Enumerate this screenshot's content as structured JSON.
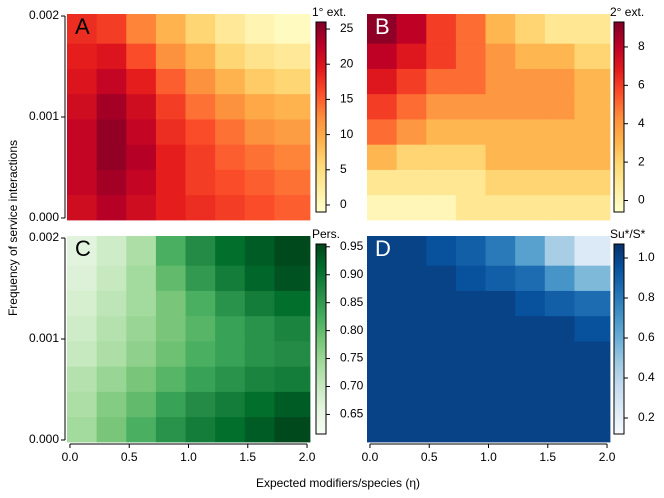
{
  "figure": {
    "xlabel": "Expected modifiers/species (η)",
    "ylabel": "Frequency of service interactions"
  },
  "chart_data": [
    {
      "type": "heatmap",
      "label": "A",
      "label_color": "#000000",
      "colorbar_title": "1° ext.",
      "colors": [
        "#ffffcc",
        "#ffeda0",
        "#fed976",
        "#feb24c",
        "#fd8d3c",
        "#fc4e2a",
        "#e31a1c",
        "#bd0026",
        "#800026"
      ],
      "xbins": [
        -0.025,
        0.225,
        0.475,
        0.725,
        0.975,
        1.225,
        1.475,
        1.725,
        2.025
      ],
      "ybins": [
        -2e-05,
        0.00023,
        0.00048,
        0.00073,
        0.00098,
        0.00123,
        0.00148,
        0.00173,
        0.00202
      ],
      "xlim": [
        -0.025,
        2.025
      ],
      "ylim": [
        -2e-05,
        0.00202
      ],
      "yticks": [
        {
          "value": 0,
          "label": "0.000"
        },
        {
          "value": 0.001,
          "label": "0.001"
        },
        {
          "value": 0.002,
          "label": "0.002"
        }
      ],
      "zlim": [
        -1,
        26
      ],
      "zticks": [
        0,
        5,
        10,
        15,
        20,
        25
      ],
      "z": [
        [
          21,
          23,
          21,
          19,
          18,
          17,
          16,
          15
        ],
        [
          22,
          24,
          22,
          19,
          17,
          16,
          15,
          14
        ],
        [
          22,
          25,
          23,
          19,
          17,
          15,
          14,
          13
        ],
        [
          22,
          25,
          22,
          18,
          16,
          14,
          12,
          11
        ],
        [
          21,
          24,
          21,
          17,
          14,
          12,
          10,
          9
        ],
        [
          20,
          22,
          19,
          15,
          12,
          9,
          7,
          6
        ],
        [
          19,
          20,
          16,
          12,
          9,
          6,
          4,
          3
        ],
        [
          18,
          17,
          13,
          9,
          6,
          3,
          1,
          0
        ]
      ]
    },
    {
      "type": "heatmap",
      "label": "B",
      "label_color": "#ffffff",
      "colorbar_title": "2° ext.",
      "colors": [
        "#ffffcc",
        "#ffeda0",
        "#fed976",
        "#feb24c",
        "#fd8d3c",
        "#fc4e2a",
        "#e31a1c",
        "#bd0026",
        "#800026"
      ],
      "xbins": [
        -0.025,
        0.225,
        0.475,
        0.725,
        0.975,
        1.225,
        1.475,
        1.725,
        2.025
      ],
      "ybins": [
        -2e-05,
        0.00023,
        0.00048,
        0.00073,
        0.00098,
        0.00123,
        0.00148,
        0.00173,
        0.00202
      ],
      "xlim": [
        -0.025,
        2.025
      ],
      "ylim": [
        -2e-05,
        0.00202
      ],
      "zlim": [
        -0.6,
        9.3
      ],
      "zticks": [
        0,
        2,
        4,
        6,
        8
      ],
      "z": [
        [
          0,
          0,
          0,
          1,
          1,
          1,
          1,
          1
        ],
        [
          1,
          1,
          1,
          1,
          2,
          2,
          2,
          2
        ],
        [
          3,
          2,
          2,
          2,
          3,
          3,
          3,
          3
        ],
        [
          5,
          4,
          3,
          3,
          3,
          3,
          3,
          3
        ],
        [
          6,
          5,
          4,
          4,
          4,
          4,
          4,
          3
        ],
        [
          7,
          6,
          5,
          5,
          4,
          4,
          4,
          3
        ],
        [
          8,
          7,
          6,
          5,
          4,
          3,
          3,
          2
        ],
        [
          9,
          8,
          6,
          5,
          3,
          2,
          1,
          1
        ]
      ]
    },
    {
      "type": "heatmap",
      "label": "C",
      "label_color": "#000000",
      "colorbar_title": "Pers.",
      "colors": [
        "#f7fcf5",
        "#e5f5e0",
        "#c7e9c0",
        "#a1d99b",
        "#74c476",
        "#41ab5d",
        "#238b45",
        "#006d2c",
        "#00441b"
      ],
      "xbins": [
        -0.025,
        0.225,
        0.475,
        0.725,
        0.975,
        1.225,
        1.475,
        1.725,
        2.025
      ],
      "ybins": [
        -2e-05,
        0.00023,
        0.00048,
        0.00073,
        0.00098,
        0.00123,
        0.00148,
        0.00173,
        0.00202
      ],
      "xlim": [
        -0.025,
        2.025
      ],
      "ylim": [
        -2e-05,
        0.00202
      ],
      "xticks": [
        {
          "value": 0,
          "label": "0.0"
        },
        0.5,
        {
          "value": 1,
          "label": "1.0"
        },
        1.5,
        {
          "value": 2,
          "label": "2.0"
        }
      ],
      "yticks": [
        {
          "value": 0,
          "label": "0.000"
        },
        {
          "value": 0.001,
          "label": "0.001"
        },
        {
          "value": 0.002,
          "label": "0.002"
        }
      ],
      "zlim": [
        0.615,
        0.955
      ],
      "zticks": [
        0.65,
        {
          "value": 0.7,
          "label": "0.70"
        },
        0.75,
        {
          "value": 0.8,
          "label": "0.80"
        },
        0.85,
        {
          "value": 0.9,
          "label": "0.90"
        },
        0.95
      ],
      "z": [
        [
          0.74,
          0.78,
          0.82,
          0.86,
          0.89,
          0.91,
          0.93,
          0.95
        ],
        [
          0.73,
          0.77,
          0.8,
          0.84,
          0.87,
          0.89,
          0.91,
          0.93
        ],
        [
          0.72,
          0.75,
          0.78,
          0.81,
          0.84,
          0.86,
          0.88,
          0.89
        ],
        [
          0.7,
          0.73,
          0.76,
          0.79,
          0.82,
          0.84,
          0.86,
          0.87
        ],
        [
          0.69,
          0.72,
          0.75,
          0.78,
          0.81,
          0.84,
          0.86,
          0.88
        ],
        [
          0.68,
          0.71,
          0.74,
          0.78,
          0.82,
          0.86,
          0.89,
          0.91
        ],
        [
          0.67,
          0.7,
          0.74,
          0.8,
          0.85,
          0.89,
          0.92,
          0.94
        ],
        [
          0.66,
          0.69,
          0.73,
          0.82,
          0.87,
          0.91,
          0.93,
          0.95
        ]
      ]
    },
    {
      "type": "heatmap",
      "label": "D",
      "label_color": "#ffffff",
      "colorbar_title": "Su*/S*",
      "colors": [
        "#f7fbff",
        "#deebf7",
        "#c6dbef",
        "#9ecae1",
        "#6baed6",
        "#4292c6",
        "#2171b5",
        "#08519c",
        "#08306b"
      ],
      "xbins": [
        -0.025,
        0.225,
        0.475,
        0.725,
        0.975,
        1.225,
        1.475,
        1.725,
        2.025
      ],
      "ybins": [
        -2e-05,
        0.00023,
        0.00048,
        0.00073,
        0.00098,
        0.00123,
        0.00148,
        0.00173,
        0.00202
      ],
      "xlim": [
        -0.025,
        2.025
      ],
      "ylim": [
        -2e-05,
        0.00202
      ],
      "xticks": [
        {
          "value": 0,
          "label": "0.0"
        },
        0.5,
        {
          "value": 1,
          "label": "1.0"
        },
        1.5,
        {
          "value": 2,
          "label": "2.0"
        }
      ],
      "zlim": [
        0.12,
        1.07
      ],
      "zticks": [
        0.2,
        0.4,
        0.6,
        0.8,
        {
          "value": 1,
          "label": "1.0"
        }
      ],
      "z": [
        [
          1,
          1,
          1,
          1,
          1,
          1,
          1,
          1
        ],
        [
          1,
          1,
          1,
          1,
          1,
          1,
          1,
          1
        ],
        [
          1,
          1,
          1,
          1,
          1,
          1,
          1,
          1
        ],
        [
          1,
          1,
          1,
          1,
          1,
          1,
          1,
          1
        ],
        [
          1,
          1,
          1,
          1,
          1,
          1,
          1,
          0.95
        ],
        [
          1,
          1,
          1,
          1,
          1,
          0.95,
          0.9,
          0.85
        ],
        [
          1,
          1,
          1,
          0.95,
          0.9,
          0.85,
          0.7,
          0.55
        ],
        [
          1,
          1,
          0.95,
          0.9,
          0.8,
          0.65,
          0.45,
          0.25
        ]
      ]
    }
  ]
}
